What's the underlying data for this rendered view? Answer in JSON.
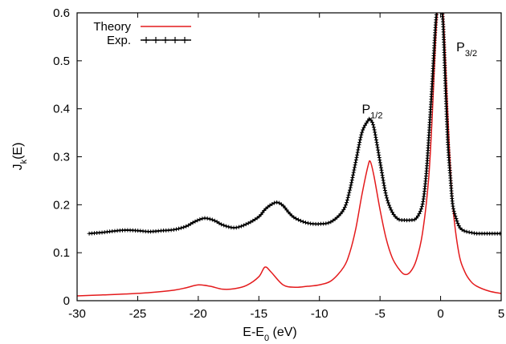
{
  "chart_data": {
    "type": "line",
    "xlabel": {
      "main": "E-E",
      "sub": "0",
      "rest": " (eV)"
    },
    "ylabel": {
      "main": "J",
      "sub": "k",
      "rest": "(E)"
    },
    "xlim": [
      -30,
      5
    ],
    "ylim": [
      0,
      0.6
    ],
    "x_ticks": [
      -30,
      -25,
      -20,
      -15,
      -10,
      -5,
      0,
      5
    ],
    "y_ticks": [
      0,
      0.1,
      0.2,
      0.3,
      0.4,
      0.5,
      0.6
    ],
    "x_tick_labels": [
      "-30",
      "-25",
      "-20",
      "-15",
      "-10",
      "-5",
      "0",
      "5"
    ],
    "y_tick_labels": [
      "0",
      "0.1",
      "0.2",
      "0.3",
      "0.4",
      "0.5",
      "0.6"
    ],
    "grid": false,
    "legend_position": "top-left",
    "annotations": [
      {
        "id": "p12",
        "main": "P",
        "sub": "1/2",
        "x": -6.5,
        "y": 0.39
      },
      {
        "id": "p32",
        "main": "P",
        "sub": "3/2",
        "x": 1.3,
        "y": 0.52
      }
    ],
    "series": [
      {
        "name": "Theory",
        "color": "#e41a1c",
        "marker": "none",
        "x": [
          -30,
          -28,
          -26,
          -24,
          -22,
          -21,
          -20,
          -19,
          -18,
          -17,
          -16,
          -15,
          -14.5,
          -14,
          -13,
          -12,
          -11,
          -10,
          -9,
          -8,
          -7.5,
          -7,
          -6.5,
          -6,
          -5.8,
          -5.5,
          -5,
          -4.5,
          -4,
          -3.5,
          -3,
          -2.5,
          -2,
          -1.5,
          -1,
          -0.7,
          -0.4,
          -0.2,
          0,
          0.2,
          0.4,
          0.7,
          1,
          1.5,
          2,
          2.5,
          3,
          4,
          5
        ],
        "y": [
          0.01,
          0.012,
          0.014,
          0.017,
          0.022,
          0.027,
          0.033,
          0.03,
          0.024,
          0.025,
          0.032,
          0.05,
          0.07,
          0.06,
          0.033,
          0.028,
          0.03,
          0.033,
          0.042,
          0.07,
          0.1,
          0.15,
          0.22,
          0.28,
          0.29,
          0.26,
          0.19,
          0.13,
          0.09,
          0.068,
          0.055,
          0.06,
          0.085,
          0.14,
          0.25,
          0.38,
          0.55,
          0.62,
          0.62,
          0.6,
          0.5,
          0.33,
          0.2,
          0.1,
          0.06,
          0.04,
          0.03,
          0.02,
          0.015
        ]
      },
      {
        "name": "Exp.",
        "color": "#000000",
        "marker": "plus",
        "x": [
          -29,
          -28,
          -27,
          -26,
          -25,
          -24,
          -23,
          -22,
          -21,
          -20.5,
          -20,
          -19.5,
          -19,
          -18.5,
          -18,
          -17,
          -16,
          -15,
          -14.5,
          -14,
          -13.5,
          -13,
          -12.5,
          -12,
          -11,
          -10,
          -9,
          -8,
          -7.5,
          -7,
          -6.5,
          -6,
          -5.8,
          -5.5,
          -5,
          -4.5,
          -4,
          -3.5,
          -3,
          -2.5,
          -2,
          -1.5,
          -1.2,
          -1,
          -0.7,
          -0.4,
          -0.2,
          0,
          0.2,
          0.4,
          0.6,
          0.8,
          1,
          1.3,
          1.6,
          2,
          2.5,
          3,
          4,
          5
        ],
        "y": [
          0.14,
          0.142,
          0.145,
          0.147,
          0.146,
          0.144,
          0.146,
          0.148,
          0.155,
          0.162,
          0.168,
          0.172,
          0.17,
          0.165,
          0.158,
          0.152,
          0.16,
          0.175,
          0.19,
          0.2,
          0.205,
          0.198,
          0.183,
          0.172,
          0.162,
          0.16,
          0.165,
          0.19,
          0.23,
          0.29,
          0.35,
          0.375,
          0.378,
          0.36,
          0.29,
          0.22,
          0.185,
          0.17,
          0.168,
          0.168,
          0.172,
          0.2,
          0.26,
          0.33,
          0.45,
          0.58,
          0.62,
          0.62,
          0.58,
          0.45,
          0.33,
          0.26,
          0.2,
          0.17,
          0.152,
          0.145,
          0.142,
          0.14,
          0.14,
          0.14
        ]
      }
    ]
  }
}
